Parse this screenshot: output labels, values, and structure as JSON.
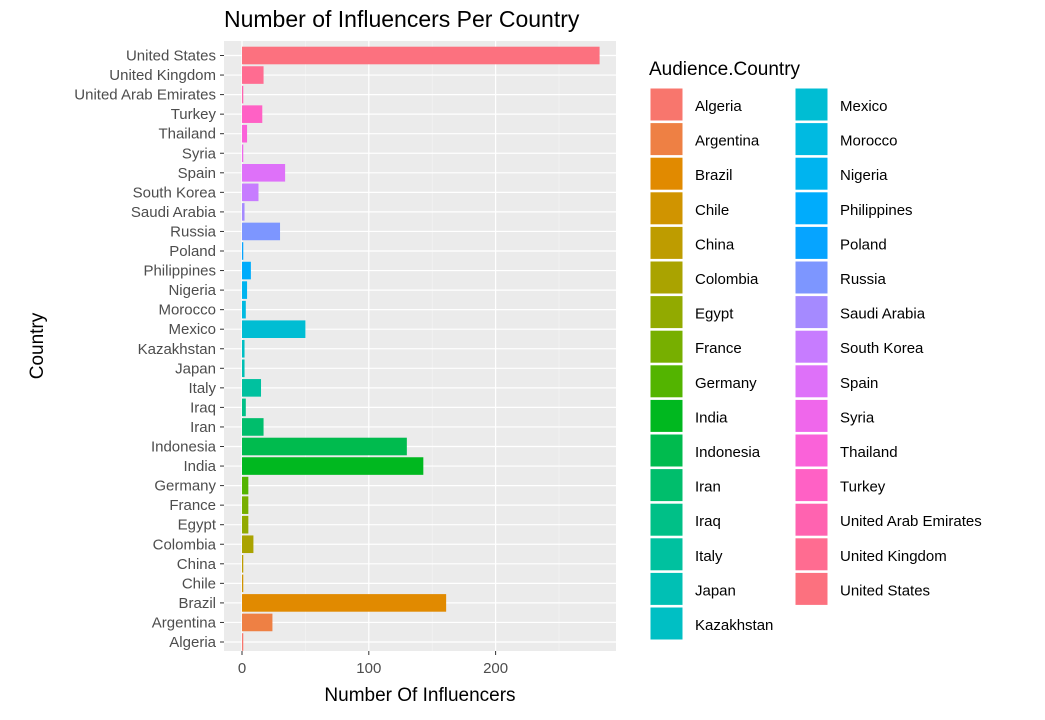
{
  "chart_data": {
    "type": "bar",
    "orientation": "horizontal",
    "title": "Number of Influencers Per Country",
    "xlabel": "Number Of Influencers",
    "ylabel": "Country",
    "xlim": [
      0,
      295
    ],
    "xticks": [
      0,
      100,
      200
    ],
    "grid": true,
    "legend": {
      "title": "Audience.Country",
      "placement": "right",
      "columns": 2
    },
    "categories": [
      "Algeria",
      "Argentina",
      "Brazil",
      "Chile",
      "China",
      "Colombia",
      "Egypt",
      "France",
      "Germany",
      "India",
      "Indonesia",
      "Iran",
      "Iraq",
      "Italy",
      "Japan",
      "Kazakhstan",
      "Mexico",
      "Morocco",
      "Nigeria",
      "Philippines",
      "Poland",
      "Russia",
      "Saudi Arabia",
      "South Korea",
      "Spain",
      "Syria",
      "Thailand",
      "Turkey",
      "United Arab Emirates",
      "United Kingdom",
      "United States"
    ],
    "values": [
      1,
      24,
      161,
      1,
      1,
      9,
      5,
      5,
      5,
      143,
      130,
      17,
      3,
      15,
      2,
      2,
      50,
      3,
      4,
      7,
      1,
      30,
      2,
      13,
      34,
      1,
      4,
      16,
      1,
      17,
      282
    ],
    "colors": [
      "#F8766D",
      "#EE8044",
      "#E18A00",
      "#D09400",
      "#BE9C00",
      "#AAA300",
      "#92AA00",
      "#77AF00",
      "#53B400",
      "#00B81F",
      "#00BB4E",
      "#00BE6C",
      "#00C087",
      "#00C19F",
      "#00C0B4",
      "#00BFC4",
      "#00BDD3",
      "#00BAE1",
      "#00B4EF",
      "#00ACFC",
      "#06A4FF",
      "#7D96FF",
      "#A58AFF",
      "#C77CFF",
      "#DE71F9",
      "#EF67EB",
      "#FA62D9",
      "#FF61C5",
      "#FF63B0",
      "#FF6C91",
      "#FC717F"
    ]
  }
}
